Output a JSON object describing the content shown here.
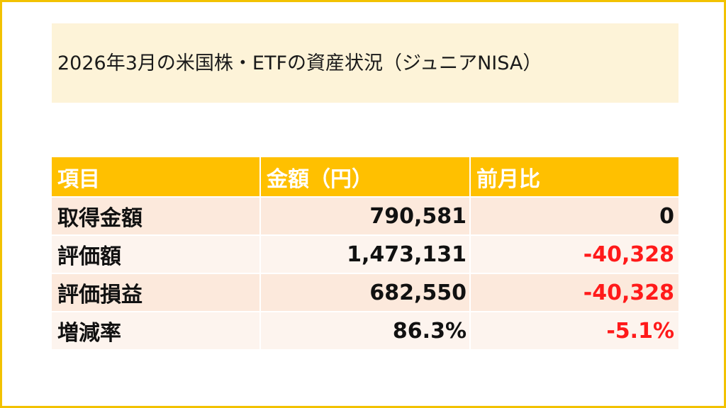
{
  "title": "2026年3月の米国株・ETFの資産状況（ジュニアNISA）",
  "table": {
    "headers": [
      "項目",
      "金額（円）",
      "前月比"
    ],
    "rows": [
      {
        "item": "取得金額",
        "amount": "790,581",
        "change": "0",
        "change_negative": false
      },
      {
        "item": "評価額",
        "amount": "1,473,131",
        "change": "-40,328",
        "change_negative": true
      },
      {
        "item": "評価損益",
        "amount": "682,550",
        "change": "-40,328",
        "change_negative": true
      },
      {
        "item": "増減率",
        "amount": "86.3%",
        "change": "-5.1%",
        "change_negative": true
      }
    ]
  },
  "colors": {
    "frame_border": "#f2c200",
    "title_background": "#fdf3d8",
    "header_background": "#ffc000",
    "header_text": "#ffffff",
    "row_odd_background": "#fce9dc",
    "row_even_background": "#fdf4ee",
    "negative_text": "#ff1a1a"
  }
}
